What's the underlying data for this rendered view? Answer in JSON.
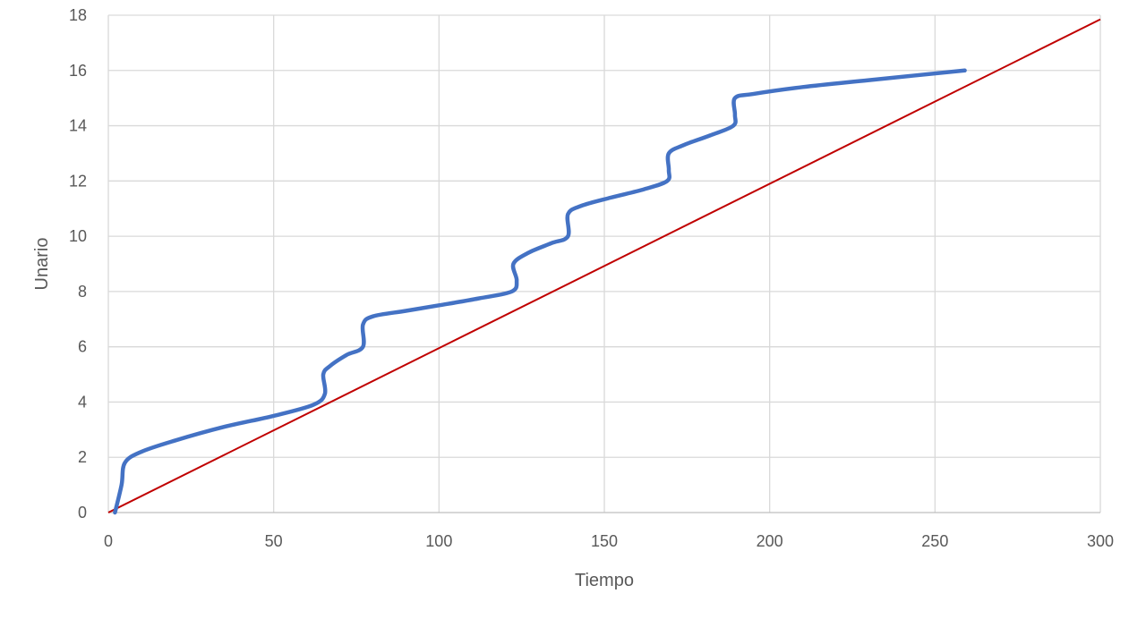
{
  "chart_data": {
    "type": "line",
    "title": "",
    "xlabel": "Tiempo",
    "ylabel": "Unario",
    "xlim": [
      0,
      300
    ],
    "ylim": [
      0,
      18
    ],
    "x_ticks": [
      0,
      50,
      100,
      150,
      200,
      250,
      300
    ],
    "y_ticks": [
      0,
      2,
      4,
      6,
      8,
      10,
      12,
      14,
      16,
      18
    ],
    "grid": true,
    "legend": "none",
    "series": [
      {
        "color": "#4472C4",
        "x": [
          2,
          4,
          5,
          10,
          20,
          35,
          50,
          62,
          65.5,
          65,
          67,
          72,
          77,
          77,
          80,
          90,
          100,
          112,
          122,
          123.5,
          122.5,
          127,
          134,
          139,
          139,
          143,
          152,
          162,
          169,
          169.5,
          169.5,
          174,
          182,
          189,
          189.5,
          189.5,
          195,
          210,
          230,
          259
        ],
        "y": [
          0,
          1,
          1.8,
          2.2,
          2.6,
          3.1,
          3.5,
          3.9,
          4.3,
          5,
          5.3,
          5.7,
          6,
          6.8,
          7.1,
          7.3,
          7.5,
          7.75,
          8,
          8.4,
          9,
          9.4,
          9.75,
          10,
          10.8,
          11.1,
          11.4,
          11.7,
          12,
          12.4,
          13,
          13.3,
          13.65,
          14,
          14.4,
          15,
          15.15,
          15.4,
          15.65,
          16
        ]
      },
      {
        "color": "#C00000",
        "x": [
          0,
          300
        ],
        "y": [
          0,
          17.85
        ]
      }
    ]
  }
}
